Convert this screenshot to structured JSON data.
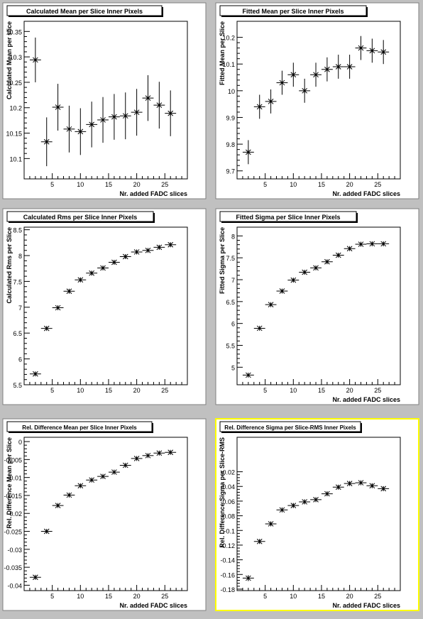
{
  "colors": {
    "background": "#c0c0c0",
    "pad": "#ffffff",
    "frame_highlight": "#ffff00",
    "ink": "#000000"
  },
  "chart_data": [
    {
      "type": "scatter",
      "title": "Calculated Mean per Slice Inner Pixels",
      "xlabel": "Nr. added FADC slices",
      "ylabel": "Calculated Mean per slice",
      "xlim": [
        0,
        29
      ],
      "ylim": [
        10.06,
        10.37
      ],
      "yticks": [
        10.1,
        10.15,
        10.2,
        10.25,
        10.3,
        10.35
      ],
      "yticklabels": [
        "10.1",
        "10.15",
        "10.2",
        "10.25",
        "10.3",
        "10.35"
      ],
      "x": [
        2,
        4,
        6,
        8,
        10,
        12,
        14,
        16,
        18,
        20,
        22,
        24,
        26
      ],
      "y": [
        10.294,
        10.133,
        10.201,
        10.158,
        10.153,
        10.167,
        10.176,
        10.182,
        10.184,
        10.191,
        10.219,
        10.205,
        10.189
      ],
      "yerr": [
        0.044,
        0.048,
        0.046,
        0.046,
        0.046,
        0.045,
        0.045,
        0.045,
        0.046,
        0.046,
        0.045,
        0.046,
        0.045
      ],
      "xerr": 1,
      "grid": false,
      "legend": "none"
    },
    {
      "type": "scatter",
      "title": "Fitted Mean per Slice Inner Pixels",
      "xlabel": "Nr. added FADC slices",
      "ylabel": "Fitted Mean per Slice",
      "xlim": [
        0,
        29
      ],
      "ylim": [
        9.67,
        10.26
      ],
      "yticks": [
        9.7,
        9.8,
        9.9,
        10,
        10.1,
        10.2
      ],
      "yticklabels": [
        "9.7",
        "9.8",
        "9.9",
        "10",
        "10.1",
        "10.2"
      ],
      "x": [
        2,
        4,
        6,
        8,
        10,
        12,
        14,
        16,
        18,
        20,
        22,
        24,
        26
      ],
      "y": [
        9.77,
        9.94,
        9.96,
        10.03,
        10.06,
        10.0,
        10.06,
        10.08,
        10.09,
        10.09,
        10.16,
        10.15,
        10.145
      ],
      "yerr": [
        0.045,
        0.045,
        0.045,
        0.045,
        0.045,
        0.045,
        0.045,
        0.045,
        0.045,
        0.045,
        0.045,
        0.045,
        0.045
      ],
      "xerr": 1,
      "grid": false,
      "legend": "none"
    },
    {
      "type": "scatter",
      "title": "Calculated Rms per Slice Inner Pixels",
      "xlabel": "",
      "ylabel": "Calculated Rms per Slice",
      "xlim": [
        0,
        29
      ],
      "ylim": [
        5.5,
        8.55
      ],
      "yticks": [
        5.5,
        6,
        6.5,
        7,
        7.5,
        8,
        8.5
      ],
      "yticklabels": [
        "5.5",
        "6",
        "6.5",
        "7",
        "7.5",
        "8",
        "8.5"
      ],
      "x": [
        2,
        4,
        6,
        8,
        10,
        12,
        14,
        16,
        18,
        20,
        22,
        24,
        26
      ],
      "y": [
        5.71,
        6.59,
        6.99,
        7.31,
        7.53,
        7.66,
        7.76,
        7.87,
        7.98,
        8.07,
        8.1,
        8.16,
        8.21
      ],
      "yerr": [
        0.03,
        0.03,
        0.04,
        0.04,
        0.04,
        0.04,
        0.04,
        0.04,
        0.04,
        0.04,
        0.04,
        0.04,
        0.04
      ],
      "xerr": 1,
      "grid": false,
      "legend": "none"
    },
    {
      "type": "scatter",
      "title": "Fitted Sigma per Slice Inner Pixels",
      "xlabel": "Nr. added FADC slices",
      "ylabel": "Fitted Sigma per Slice",
      "xlim": [
        0,
        29
      ],
      "ylim": [
        4.6,
        8.2
      ],
      "yticks": [
        5,
        5.5,
        6,
        6.5,
        7,
        7.5,
        8
      ],
      "yticklabels": [
        "5",
        "5.5",
        "6",
        "6.5",
        "7",
        "7.5",
        "8"
      ],
      "x": [
        2,
        4,
        6,
        8,
        10,
        12,
        14,
        16,
        18,
        20,
        22,
        24,
        26
      ],
      "y": [
        4.82,
        5.89,
        6.43,
        6.74,
        6.99,
        7.17,
        7.27,
        7.41,
        7.56,
        7.71,
        7.81,
        7.82,
        7.82
      ],
      "yerr": [
        0.03,
        0.03,
        0.04,
        0.04,
        0.04,
        0.04,
        0.04,
        0.04,
        0.04,
        0.04,
        0.04,
        0.04,
        0.04
      ],
      "xerr": 1,
      "grid": false,
      "legend": "none"
    },
    {
      "type": "scatter",
      "title": "Rel. Difference  Mean per Slice Inner Pixels",
      "xlabel": "Nr. added FADC slices",
      "ylabel": "Rel. Difference  Mean per Slice",
      "xlim": [
        0,
        29
      ],
      "ylim": [
        -0.0415,
        0.0012
      ],
      "yticks": [
        -0.04,
        -0.035,
        -0.03,
        -0.025,
        -0.02,
        -0.015,
        -0.01,
        -0.005,
        0
      ],
      "yticklabels": [
        "-0.04",
        "-0.035",
        "-0.03",
        "-0.025",
        "-0.02",
        "-0.015",
        "-0.01",
        "-0.005",
        "0"
      ],
      "x": [
        2,
        4,
        6,
        8,
        10,
        12,
        14,
        16,
        18,
        20,
        22,
        24,
        26
      ],
      "y": [
        -0.0378,
        -0.025,
        -0.0178,
        -0.0149,
        -0.0123,
        -0.0107,
        -0.0097,
        -0.0085,
        -0.0066,
        -0.0047,
        -0.0039,
        -0.0032,
        -0.003
      ],
      "yerr": [
        0.0005,
        0.0004,
        0.0004,
        0.0004,
        0.0004,
        0.0004,
        0.0004,
        0.0004,
        0.0004,
        0.0004,
        0.0004,
        0.0004,
        0.0004
      ],
      "xerr": 1,
      "grid": false,
      "legend": "none"
    },
    {
      "type": "scatter",
      "title": "Rel. Difference Sigma per Slice-RMS Inner Pixels",
      "xlabel": "Nr. added FADC slices",
      "ylabel": "Rel. Difference Sigma per Slice-RMS",
      "xlim": [
        0,
        29
      ],
      "ylim": [
        -0.182,
        0.027
      ],
      "yticks": [
        -0.18,
        -0.16,
        -0.14,
        -0.12,
        -0.1,
        -0.08,
        -0.06,
        -0.04,
        -0.02
      ],
      "yticklabels": [
        "-0.18",
        "-0.16",
        "-0.14",
        "-0.12",
        "-0.1",
        "-0.08",
        "-0.06",
        "-0.04",
        "-0.02"
      ],
      "x": [
        2,
        4,
        6,
        8,
        10,
        12,
        14,
        16,
        18,
        20,
        22,
        24,
        26
      ],
      "y": [
        -0.165,
        -0.115,
        -0.091,
        -0.072,
        -0.066,
        -0.061,
        -0.058,
        -0.05,
        -0.041,
        -0.036,
        -0.035,
        -0.039,
        -0.043
      ],
      "yerr": [
        0.004,
        0.003,
        0.003,
        0.003,
        0.003,
        0.003,
        0.003,
        0.003,
        0.003,
        0.003,
        0.003,
        0.003,
        0.003
      ],
      "xerr": 1,
      "grid": false,
      "legend": "none"
    }
  ],
  "xticks": [
    5,
    10,
    15,
    20,
    25
  ],
  "xticklabels": [
    "5",
    "10",
    "15",
    "20",
    "25"
  ]
}
